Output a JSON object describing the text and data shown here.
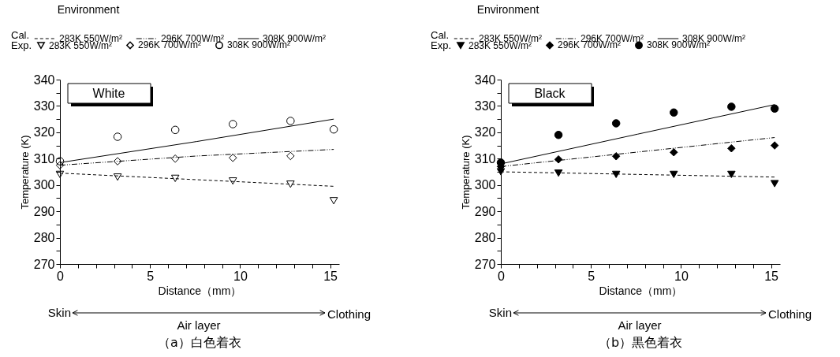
{
  "chart_data": [
    {
      "type": "line",
      "title": "（a）白色着衣",
      "xlabel": "Distance（mm）",
      "ylabel": "Temperature (K)",
      "legend_title": "Environment",
      "annotations": [
        "White",
        "Skin",
        "Air layer",
        "Clothing",
        "Cal.",
        "Exp."
      ],
      "x": [
        0,
        3.2,
        6.4,
        9.6,
        12.8,
        15.2
      ],
      "xlim": [
        0,
        15.5
      ],
      "xticks": [
        0,
        {
          "value": 1,
          "label": null
        },
        {
          "value": 2,
          "label": null
        },
        {
          "value": 3,
          "label": null
        },
        {
          "value": 4,
          "label": null
        },
        5,
        {
          "value": 6,
          "label": null
        },
        {
          "value": 7,
          "label": null
        },
        {
          "value": 8,
          "label": null
        },
        {
          "value": 9,
          "label": null
        },
        10,
        {
          "value": 11,
          "label": null
        },
        {
          "value": 12,
          "label": null
        },
        {
          "value": 13,
          "label": null
        },
        {
          "value": 14,
          "label": null
        },
        15
      ],
      "ylim": [
        270,
        340
      ],
      "yticks": [
        270,
        {
          "value": 275,
          "label": null
        },
        280,
        {
          "value": 285,
          "label": null
        },
        290,
        {
          "value": 295,
          "label": null
        },
        300,
        {
          "value": 305,
          "label": null
        },
        310,
        {
          "value": 315,
          "label": null
        },
        320,
        {
          "value": 325,
          "label": null
        },
        330,
        {
          "value": 335,
          "label": null
        },
        340
      ],
      "grid": false,
      "legend": "top left",
      "series": [
        {
          "name": "283K 550W/m²",
          "type": "line",
          "line_style": "dashed",
          "color": "#000000",
          "x": [
            0,
            7.6,
            15.2
          ],
          "values": [
            304.5,
            302,
            299.5
          ]
        },
        {
          "name": "296K 700W/m²",
          "type": "line",
          "line_style": "dashdot",
          "color": "#000000",
          "x": [
            0,
            7.6,
            15.2
          ],
          "values": [
            307.5,
            311,
            313.5
          ]
        },
        {
          "name": "308K 900W/m²",
          "type": "line",
          "line_style": "solid",
          "color": "#000000",
          "x": [
            0,
            7.6,
            15.2
          ],
          "values": [
            308.5,
            316.5,
            325
          ]
        },
        {
          "name": "283K 550W/m²",
          "type": "scatter",
          "marker": "triangle-open",
          "color": "#000000",
          "values": [
            304,
            303,
            302.5,
            301.5,
            300.3,
            294
          ]
        },
        {
          "name": "296K 700W/m²",
          "type": "scatter",
          "marker": "diamond-open",
          "color": "#000000",
          "values": [
            307.5,
            309,
            310,
            310.3,
            311,
            null
          ]
        },
        {
          "name": "308K 900W/m²",
          "type": "scatter",
          "marker": "circle-open",
          "color": "#000000",
          "values": [
            309,
            318.3,
            320.9,
            323.1,
            324.3,
            321.1
          ]
        }
      ]
    },
    {
      "type": "line",
      "title": "（b）黒色着衣",
      "xlabel": "Distance（mm）",
      "ylabel": "Temperature (K)",
      "legend_title": "Environment",
      "annotations": [
        "Black",
        "Skin",
        "Air layer",
        "Clothing",
        "Cal.",
        "Exp."
      ],
      "x": [
        0,
        3.2,
        6.4,
        9.6,
        12.8,
        15.2
      ],
      "xlim": [
        0,
        15.5
      ],
      "xticks": [
        0,
        {
          "value": 1,
          "label": null
        },
        {
          "value": 2,
          "label": null
        },
        {
          "value": 3,
          "label": null
        },
        {
          "value": 4,
          "label": null
        },
        5,
        {
          "value": 6,
          "label": null
        },
        {
          "value": 7,
          "label": null
        },
        {
          "value": 8,
          "label": null
        },
        {
          "value": 9,
          "label": null
        },
        10,
        {
          "value": 11,
          "label": null
        },
        {
          "value": 12,
          "label": null
        },
        {
          "value": 13,
          "label": null
        },
        {
          "value": 14,
          "label": null
        },
        15
      ],
      "ylim": [
        270,
        340
      ],
      "yticks": [
        270,
        {
          "value": 275,
          "label": null
        },
        280,
        {
          "value": 285,
          "label": null
        },
        290,
        {
          "value": 295,
          "label": null
        },
        300,
        {
          "value": 305,
          "label": null
        },
        310,
        {
          "value": 315,
          "label": null
        },
        320,
        {
          "value": 325,
          "label": null
        },
        330,
        {
          "value": 335,
          "label": null
        },
        340
      ],
      "grid": false,
      "legend": "top left",
      "series": [
        {
          "name": "283K 550W/m²",
          "type": "line",
          "line_style": "dashed",
          "color": "#000000",
          "x": [
            0,
            7.6,
            15.2
          ],
          "values": [
            305,
            304,
            303
          ]
        },
        {
          "name": "296K 700W/m²",
          "type": "line",
          "line_style": "dashdot",
          "color": "#000000",
          "x": [
            0,
            7.6,
            15.2
          ],
          "values": [
            307,
            312.5,
            318
          ]
        },
        {
          "name": "308K 900W/m²",
          "type": "line",
          "line_style": "solid",
          "color": "#000000",
          "x": [
            0,
            7.6,
            15.2
          ],
          "values": [
            308,
            319.3,
            330.5
          ]
        },
        {
          "name": "283K 550W/m²",
          "type": "scatter",
          "marker": "triangle",
          "color": "#000000",
          "values": [
            305,
            304.5,
            304,
            304,
            304,
            300.5
          ]
        },
        {
          "name": "296K 700W/m²",
          "type": "scatter",
          "marker": "diamond",
          "color": "#000000",
          "values": [
            307,
            309.7,
            310.9,
            312.4,
            313.9,
            315
          ]
        },
        {
          "name": "308K 900W/m²",
          "type": "scatter",
          "marker": "circle",
          "color": "#000000",
          "values": [
            308.5,
            319,
            323.4,
            327.5,
            329.7,
            329
          ]
        }
      ]
    }
  ]
}
